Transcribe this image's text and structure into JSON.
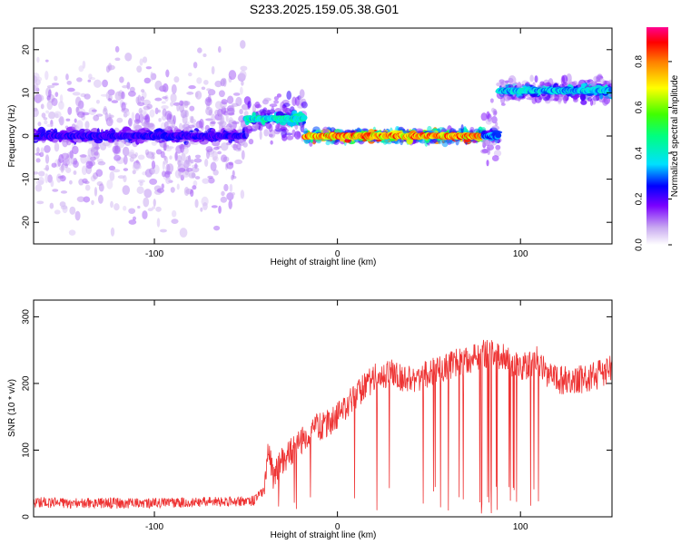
{
  "title": "S233.2025.159.05.38.G01",
  "chart_data": [
    {
      "type": "heatmap",
      "title": "S233.2025.159.05.38.G01",
      "xlabel": "Height of straight line (km)",
      "ylabel": "Frequency (Hz)",
      "xlim": [
        -166,
        150
      ],
      "ylim": [
        -25,
        25
      ],
      "xticks": [
        -100,
        0,
        100
      ],
      "xtick_labels": [
        "-100",
        "0",
        "100"
      ],
      "yticks": [
        -20,
        -10,
        0,
        10,
        20
      ],
      "ytick_labels": [
        "-20",
        "-10",
        "0",
        "10",
        "20"
      ],
      "colorbar": {
        "label": "Normalized spectral amplitude",
        "range": [
          0,
          0.95
        ],
        "ticks": [
          0.0,
          0.2,
          0.4,
          0.6,
          0.8
        ],
        "tick_labels": [
          "0.0",
          "0.2",
          "0.4",
          "0.6",
          "0.8"
        ],
        "colormap": "rainbow-white-to-red"
      },
      "segments": [
        {
          "x": [
            -166,
            -50
          ],
          "freq_center": 0,
          "amplitude": 0.25,
          "spread_hz": 25
        },
        {
          "x": [
            -50,
            -18
          ],
          "freq_center": 4,
          "amplitude": 0.45,
          "spread_hz": 8
        },
        {
          "x": [
            -18,
            80
          ],
          "freq_center": 0,
          "amplitude": 0.85,
          "spread_hz": 2
        },
        {
          "x": [
            80,
            88
          ],
          "freq_center": 0,
          "amplitude": 0.35,
          "spread_hz": 10
        },
        {
          "x": [
            88,
            150
          ],
          "freq_center": 10.5,
          "amplitude": 0.4,
          "spread_hz": 4
        }
      ],
      "grid": false
    },
    {
      "type": "line",
      "xlabel": "Height of straight line (km)",
      "ylabel": "SNR (10 * v/v)",
      "xlim": [
        -166,
        150
      ],
      "ylim": [
        0,
        325
      ],
      "xticks": [
        -100,
        0,
        100
      ],
      "xtick_labels": [
        "-100",
        "0",
        "100"
      ],
      "yticks": [
        0,
        100,
        200,
        300
      ],
      "ytick_labels": [
        "0",
        "100",
        "200",
        "300"
      ],
      "color": "#ee3333",
      "grid": false,
      "x": [
        -166,
        -150,
        -130,
        -110,
        -90,
        -70,
        -50,
        -45,
        -40,
        -38,
        -35,
        -30,
        -25,
        -20,
        -15,
        -10,
        -5,
        0,
        5,
        10,
        15,
        20,
        25,
        30,
        40,
        50,
        60,
        70,
        75,
        80,
        85,
        90,
        95,
        100,
        105,
        110,
        115,
        120,
        130,
        140,
        150
      ],
      "y": [
        22,
        20,
        21,
        20,
        21,
        22,
        23,
        25,
        40,
        100,
        60,
        85,
        100,
        115,
        125,
        135,
        140,
        150,
        170,
        180,
        195,
        210,
        215,
        215,
        205,
        215,
        225,
        235,
        240,
        245,
        245,
        240,
        230,
        225,
        230,
        235,
        210,
        205,
        205,
        210,
        225
      ]
    }
  ]
}
